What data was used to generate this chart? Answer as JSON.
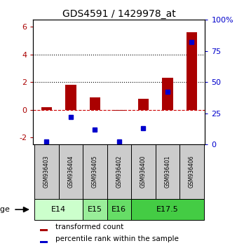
{
  "title": "GDS4591 / 1429978_at",
  "samples": [
    "GSM936403",
    "GSM936404",
    "GSM936405",
    "GSM936402",
    "GSM936400",
    "GSM936401",
    "GSM936406"
  ],
  "transformed_count": [
    0.2,
    1.8,
    0.9,
    -0.05,
    0.8,
    2.3,
    5.6
  ],
  "percentile_rank": [
    2,
    22,
    12,
    2,
    13,
    42,
    82
  ],
  "age_groups": [
    {
      "label": "E14",
      "samples": [
        0,
        1
      ]
    },
    {
      "label": "E15",
      "samples": [
        2
      ]
    },
    {
      "label": "E16",
      "samples": [
        3
      ]
    },
    {
      "label": "E17.5",
      "samples": [
        4,
        5,
        6
      ]
    }
  ],
  "age_colors": {
    "E14": "#ccffcc",
    "E15": "#99ee99",
    "E16": "#66dd66",
    "E17.5": "#44cc44"
  },
  "ylim_left": [
    -2.5,
    6.5
  ],
  "ylim_right": [
    0,
    100
  ],
  "yticks_left": [
    -2,
    0,
    2,
    4,
    6
  ],
  "yticks_right": [
    0,
    25,
    50,
    75,
    100
  ],
  "bar_color": "#aa0000",
  "dot_color": "#0000cc",
  "dashed_zero_color": "#cc0000",
  "sample_box_color": "#cccccc",
  "legend_bar_label": "transformed count",
  "legend_dot_label": "percentile rank within the sample"
}
